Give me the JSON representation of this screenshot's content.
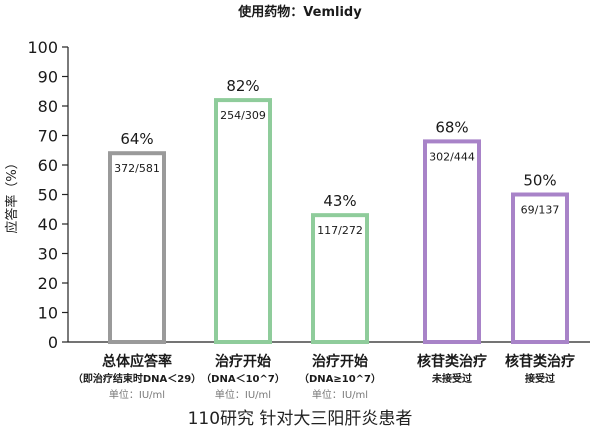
{
  "chart_data": {
    "type": "bar",
    "title": "使用药物：Vemlidy",
    "ylabel": "应答率（%）",
    "ylim": [
      0,
      100
    ],
    "yticks": [
      0,
      10,
      20,
      30,
      40,
      50,
      60,
      70,
      80,
      90,
      100
    ],
    "grid": false,
    "legend": "none",
    "footnote": "110研究 针对大三阳肝炎患者",
    "categories": [
      {
        "label": "总体应答率",
        "sublabel": "（即治疗结束时DNA＜29）",
        "unit": "单位：IU/ml",
        "value": 64,
        "value_label": "64%",
        "count_label": "372/581",
        "color": "#9a9a9a"
      },
      {
        "label": "治疗开始",
        "sublabel": "（DNA＜10^7）",
        "unit": "单位：IU/ml",
        "value": 82,
        "value_label": "82%",
        "count_label": "254/309",
        "color": "#8fcc9b"
      },
      {
        "label": "治疗开始",
        "sublabel": "（DNA≥10^7）",
        "unit": "单位：IU/ml",
        "value": 43,
        "value_label": "43%",
        "count_label": "117/272",
        "color": "#8fcc9b"
      },
      {
        "label": "核苷类治疗",
        "sublabel": "未接受过",
        "unit": "",
        "value": 68,
        "value_label": "68%",
        "count_label": "302/444",
        "color": "#a883c8"
      },
      {
        "label": "核苷类治疗",
        "sublabel": "接受过",
        "unit": "",
        "value": 50,
        "value_label": "50%",
        "count_label": "69/137",
        "color": "#a883c8"
      }
    ]
  }
}
